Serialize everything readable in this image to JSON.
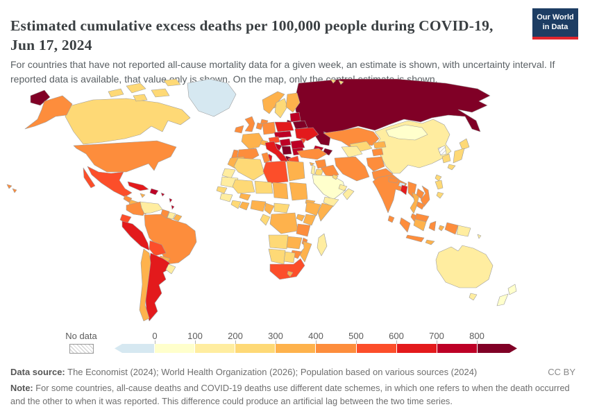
{
  "header": {
    "title": "Estimated cumulative excess deaths per 100,000 people during COVID-19, Jun 17, 2024",
    "subtitle": "For countries that have not reported all-cause mortality data for a given week, an estimate is shown, with uncertainty interval. If reported data is available, that value only is shown. On the map, only the central estimate is shown."
  },
  "branding": {
    "logo_line1": "Our World",
    "logo_line2": "in Data",
    "logo_bg": "#1d3d63",
    "logo_accent": "#e0262e"
  },
  "legend": {
    "no_data_label": "No data",
    "ticks": [
      "0",
      "100",
      "200",
      "300",
      "400",
      "500",
      "600",
      "700",
      "800"
    ]
  },
  "footer": {
    "source_label": "Data source:",
    "source_text": " The Economist (2024); World Health Organization (2026); Population based on various sources (2024)",
    "note_label": "Note:",
    "note_text": " For some countries, all-cause deaths and COVID-19 deaths use different date schemes, in which one refers to when the death occurred and the other to when it was reported. This difference could produce an artificial lag between the two time series.",
    "license": "CC BY"
  },
  "chart_data": {
    "type": "choropleth",
    "title": "Estimated cumulative excess deaths per 100,000 people during COVID-19",
    "date": "Jun 17, 2024",
    "unit": "excess deaths per 100,000 people",
    "legend_position": "bottom",
    "scale_ticks": [
      0,
      100,
      200,
      300,
      400,
      500,
      600,
      700,
      800
    ],
    "bins": [
      {
        "id": "neg",
        "range": "< 0",
        "color": "#d6e8f1"
      },
      {
        "id": "b0",
        "range": "0-100",
        "color": "#ffffcc"
      },
      {
        "id": "b1",
        "range": "100-200",
        "color": "#ffeda0"
      },
      {
        "id": "b2",
        "range": "200-300",
        "color": "#fed976"
      },
      {
        "id": "b3",
        "range": "300-400",
        "color": "#feb24c"
      },
      {
        "id": "b4",
        "range": "400-500",
        "color": "#fd8d3c"
      },
      {
        "id": "b5",
        "range": "500-600",
        "color": "#fc4e2a"
      },
      {
        "id": "b6",
        "range": "600-700",
        "color": "#e31a1c"
      },
      {
        "id": "b7",
        "range": "700-800",
        "color": "#bd0026"
      },
      {
        "id": "b8",
        "range": "800+",
        "color": "#800026"
      },
      {
        "id": "nd",
        "range": "No data",
        "color": "hatch"
      }
    ],
    "countries_by_bin": {
      "neg": [
        "greenland",
        "bhutan"
      ],
      "b0": [
        "saudi-arabia",
        "mongolia",
        "new-zealand"
      ],
      "b1": [
        "venezuela",
        "suriname",
        "uruguay",
        "australia",
        "tasmania",
        "papua-new-guinea",
        "solomon-islands",
        "madagascar",
        "western-sahara",
        "mauritania",
        "guinea",
        "turkmenistan",
        "qatar-uae",
        "oman",
        "yemen",
        "lebanon-israel",
        "china"
      ],
      "b2": [
        "canada",
        "sweden",
        "senegal",
        "ivory-coast",
        "algeria",
        "mali",
        "niger",
        "central-african-republic",
        "gabon-congo",
        "angola",
        "namibia",
        "botswana",
        "uzbekistan",
        "jordan",
        "kuwait",
        "south-korea",
        "japan",
        "taiwan",
        "philippines",
        "svalbard"
      ],
      "b3": [
        "norway",
        "finland",
        "iceland",
        "france",
        "switzerland",
        "morocco",
        "egypt",
        "burkina-faso",
        "chad",
        "sudan",
        "eritrea-djibouti",
        "ghana-togo",
        "nigeria",
        "cameroon",
        "ethiopia",
        "somalia",
        "uganda",
        "kenya",
        "drc",
        "zambia",
        "mozambique",
        "lesotho",
        "kyrgyzstan",
        "thailand",
        "cyprus",
        "honduras-nicaragua",
        "jamaica",
        "paraguay",
        "chile",
        "fr-guiana",
        "montenegro",
        "borneo-indonesia",
        "lesser-sunda",
        "maluku"
      ],
      "b4": [
        "usa",
        "alaska",
        "hawaii",
        "uk",
        "ireland",
        "denmark",
        "germany",
        "benelux",
        "spain",
        "portugal",
        "turkey",
        "syria",
        "iraq",
        "iran",
        "afghanistan",
        "pakistan",
        "tajikistan",
        "kazakhstan",
        "india",
        "nepal",
        "sri-lanka",
        "myanmar",
        "laos",
        "vietnam",
        "cambodia",
        "malaysia",
        "borneo-malaysia",
        "sumatra",
        "java",
        "sulawesi",
        "west-papua",
        "tunisia",
        "tanzania",
        "malawi",
        "zimbabwe",
        "colombia",
        "guyana",
        "brazil",
        "guatemala",
        "costa-panama"
      ],
      "b5": [
        "mexico",
        "libya",
        "south-africa",
        "ecuador",
        "bolivia",
        "austria",
        "greece",
        "moldova"
      ],
      "b6": [
        "peru",
        "argentina",
        "italy",
        "poland",
        "ukraine",
        "cuba",
        "armenia",
        "bangladesh"
      ],
      "b7": [
        "baltics",
        "czech-slovakia",
        "hungary",
        "romania",
        "croatia",
        "bulgaria",
        "georgia",
        "hispaniola",
        "puerto-rico",
        "lesser-antilles"
      ],
      "b8": [
        "russia",
        "chukotka",
        "belarus",
        "serbia",
        "albania",
        "azerbaijan",
        "kaliningrad"
      ],
      "nd": [
        "north-korea"
      ]
    }
  }
}
